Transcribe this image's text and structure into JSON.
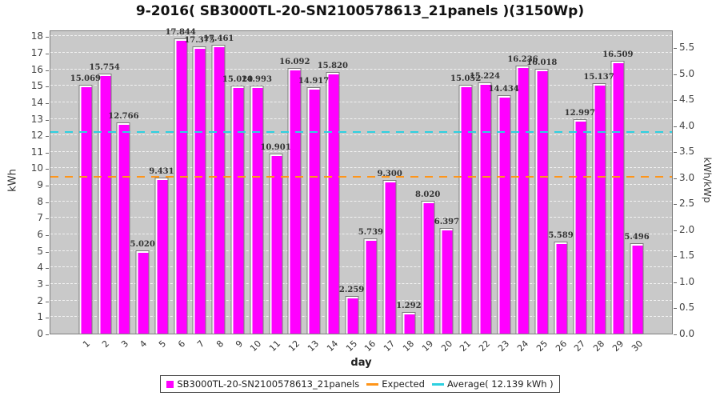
{
  "title": "9-2016( SB3000TL-20-SN2100578613_21panels )(3150Wp)",
  "chart_data": {
    "type": "bar",
    "title": "9-2016( SB3000TL-20-SN2100578613_21panels )(3150Wp)",
    "xlabel": "day",
    "ylabel_left": "kWh",
    "ylabel_right": "kWh/kWp",
    "categories": [
      "1",
      "2",
      "3",
      "4",
      "5",
      "6",
      "7",
      "8",
      "9",
      "10",
      "11",
      "12",
      "13",
      "14",
      "15",
      "16",
      "17",
      "18",
      "19",
      "20",
      "21",
      "22",
      "23",
      "24",
      "25",
      "26",
      "27",
      "28",
      "29",
      "30"
    ],
    "values": [
      15.069,
      15.754,
      12.766,
      5.02,
      9.431,
      17.844,
      17.375,
      17.461,
      15.02,
      14.993,
      10.901,
      16.092,
      14.917,
      15.82,
      2.259,
      5.739,
      9.3,
      1.292,
      8.02,
      6.397,
      15.052,
      15.224,
      14.434,
      16.236,
      16.018,
      5.589,
      12.997,
      15.137,
      16.509,
      5.496
    ],
    "value_labels": [
      "15.069",
      "15.754",
      "12.766",
      "5.020",
      "9.431",
      "17.844",
      "17.375",
      "17.461",
      "15.020",
      "14.993",
      "10.901",
      "16.092",
      "14.917",
      "15.820",
      "2.259",
      "5.739",
      "9.300",
      "1.292",
      "8.020",
      "6.397",
      "15.052",
      "15.224",
      "14.434",
      "16.236",
      "16.018",
      "5.589",
      "12.997",
      "15.137",
      "16.509",
      "5.496"
    ],
    "ylim_left": [
      0,
      18.4
    ],
    "left_ticks": [
      0,
      1,
      2,
      3,
      4,
      5,
      6,
      7,
      8,
      9,
      10,
      11,
      12,
      13,
      14,
      15,
      16,
      17,
      18
    ],
    "right_ticks": [
      "0.0",
      "0.5",
      "1.0",
      "1.5",
      "2.0",
      "2.5",
      "3.0",
      "3.5",
      "4.0",
      "4.5",
      "5.0",
      "5.5"
    ],
    "right_axis_kwp_factor": 3.15,
    "expected_kwh": 9.45,
    "average_kwh": 12.139,
    "grid": "horizontal white dashed at each kWh integer",
    "legend_position": "bottom",
    "bar_color": "#FF00FF",
    "expected_color": "#FF9519",
    "average_color": "#2ED0E0",
    "plot_bg": "#C9C9C9",
    "figure_bg": "#FFFFFF"
  },
  "legend": {
    "series_label": "SB3000TL-20-SN2100578613_21panels",
    "expected_label": "Expected",
    "average_label": "Average( 12.139 kWh )"
  }
}
